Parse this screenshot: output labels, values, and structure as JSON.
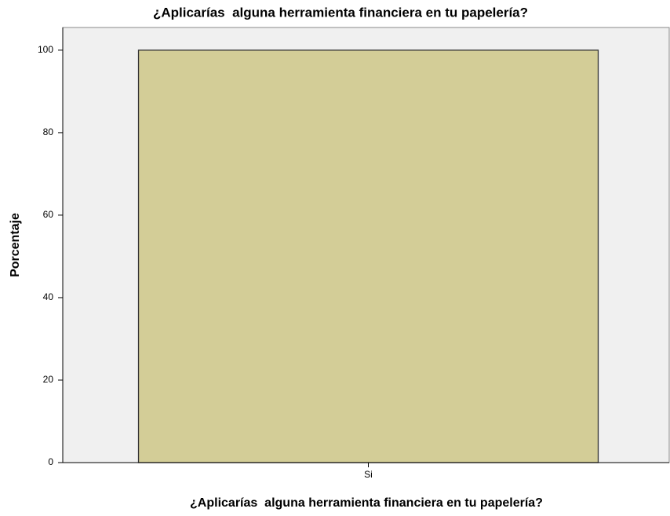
{
  "chart_data": {
    "type": "bar",
    "title": "¿Aplicarías  alguna herramienta financiera en tu papelería?",
    "x_label": "¿Aplicarías  alguna herramienta financiera en tu papelería?",
    "y_label": "Porcentaje",
    "categories": [
      "Si"
    ],
    "values": [
      100
    ],
    "color": "#d3cd97",
    "ylim": [
      0,
      105.5
    ],
    "yticks": [
      0,
      20,
      40,
      60,
      80,
      100
    ],
    "grid": false
  }
}
